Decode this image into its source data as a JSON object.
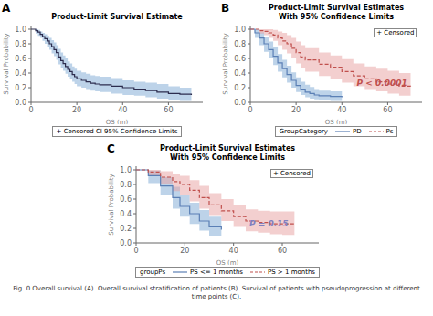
{
  "chart_data": [
    {
      "type": "step",
      "panel_label": "A",
      "title": "Product-Limit Survival Estimate",
      "xlabel": "OS (m)",
      "ylabel": "Survival Probability",
      "xlim": [
        0,
        75
      ],
      "ylim": [
        0.0,
        1.05
      ],
      "xticks": [
        0,
        20,
        40,
        60
      ],
      "yticks": [
        {
          "value": 0.0,
          "label": "0.0"
        },
        0.2,
        0.4,
        0.6,
        0.8,
        {
          "value": 1.0,
          "label": "1.0"
        }
      ],
      "legend_text": "+ Censored  CI 95% Confidence Limits",
      "series": [
        {
          "color": "#2c2c4e",
          "ci_color": "#7ba7d4",
          "line_style": "solid",
          "x": [
            0,
            2,
            3,
            4,
            5,
            6,
            7,
            8,
            9,
            10,
            11,
            12,
            13,
            14,
            15,
            16,
            17,
            18,
            19,
            20,
            22,
            24,
            26,
            28,
            30,
            35,
            40,
            45,
            50,
            55,
            60,
            65,
            70
          ],
          "values": [
            1.0,
            0.98,
            0.96,
            0.93,
            0.9,
            0.87,
            0.84,
            0.8,
            0.76,
            0.72,
            0.68,
            0.62,
            0.57,
            0.53,
            0.49,
            0.45,
            0.42,
            0.38,
            0.35,
            0.32,
            0.3,
            0.28,
            0.26,
            0.25,
            0.24,
            0.22,
            0.2,
            0.18,
            0.16,
            0.14,
            0.12,
            0.11,
            0.1
          ],
          "ci_upper": [
            1.0,
            1.0,
            0.99,
            0.97,
            0.95,
            0.93,
            0.91,
            0.88,
            0.85,
            0.82,
            0.78,
            0.73,
            0.68,
            0.64,
            0.6,
            0.56,
            0.53,
            0.49,
            0.46,
            0.43,
            0.41,
            0.39,
            0.37,
            0.36,
            0.35,
            0.33,
            0.3,
            0.28,
            0.27,
            0.25,
            0.22,
            0.2,
            0.19
          ],
          "ci_lower": [
            1.0,
            0.94,
            0.91,
            0.88,
            0.84,
            0.8,
            0.76,
            0.72,
            0.67,
            0.63,
            0.58,
            0.52,
            0.47,
            0.43,
            0.39,
            0.35,
            0.32,
            0.28,
            0.25,
            0.22,
            0.2,
            0.18,
            0.16,
            0.15,
            0.14,
            0.12,
            0.1,
            0.09,
            0.07,
            0.05,
            0.03,
            0.02,
            0.01
          ]
        }
      ]
    },
    {
      "type": "step",
      "panel_label": "B",
      "title": "Product-Limit Survival Estimates",
      "subtitle": "With 95% Confidence Limits",
      "xlabel": "OS (m)",
      "ylabel": "Survival Probability",
      "xlim": [
        0,
        75
      ],
      "ylim": [
        0.0,
        1.05
      ],
      "xticks": [
        0,
        20,
        40,
        60
      ],
      "yticks": [
        {
          "value": 0.0,
          "label": "0.0"
        },
        0.2,
        0.4,
        0.6,
        0.8,
        {
          "value": 1.0,
          "label": "1.0"
        }
      ],
      "pvalue": "P < 0.0001",
      "pvalue_color": "#c0504d",
      "censored_label": "+ Censored",
      "legend_title": "GroupCategory",
      "series": [
        {
          "name": "PD",
          "color": "#5a7fb5",
          "ci_color": "#7ba7d4",
          "line_style": "solid",
          "x": [
            0,
            2,
            4,
            6,
            8,
            10,
            12,
            14,
            16,
            18,
            20,
            22,
            24,
            26,
            28,
            30,
            35,
            40
          ],
          "values": [
            1.0,
            0.95,
            0.88,
            0.8,
            0.72,
            0.63,
            0.54,
            0.46,
            0.38,
            0.3,
            0.23,
            0.18,
            0.14,
            0.12,
            0.1,
            0.09,
            0.08,
            0.07
          ],
          "ci_upper": [
            1.0,
            1.0,
            0.96,
            0.9,
            0.83,
            0.75,
            0.66,
            0.58,
            0.5,
            0.41,
            0.34,
            0.28,
            0.24,
            0.21,
            0.18,
            0.16,
            0.15,
            0.14
          ],
          "ci_lower": [
            1.0,
            0.88,
            0.78,
            0.69,
            0.6,
            0.51,
            0.42,
            0.34,
            0.27,
            0.2,
            0.14,
            0.1,
            0.07,
            0.05,
            0.04,
            0.03,
            0.02,
            0.01
          ]
        },
        {
          "name": "Ps",
          "color": "#c0504d",
          "ci_color": "#e8a09f",
          "line_style": "dashed",
          "x": [
            0,
            2,
            4,
            6,
            8,
            10,
            12,
            14,
            16,
            18,
            20,
            22,
            24,
            30,
            35,
            40,
            45,
            50,
            55,
            60,
            65,
            70
          ],
          "values": [
            1.0,
            1.0,
            0.98,
            0.97,
            0.95,
            0.92,
            0.88,
            0.84,
            0.8,
            0.74,
            0.68,
            0.62,
            0.58,
            0.52,
            0.48,
            0.42,
            0.36,
            0.32,
            0.28,
            0.25,
            0.22,
            0.2
          ],
          "ci_upper": [
            1.0,
            1.0,
            1.0,
            1.0,
            1.0,
            0.99,
            0.97,
            0.95,
            0.92,
            0.88,
            0.83,
            0.78,
            0.74,
            0.68,
            0.64,
            0.59,
            0.53,
            0.49,
            0.46,
            0.43,
            0.4,
            0.38
          ],
          "ci_lower": [
            1.0,
            1.0,
            0.94,
            0.92,
            0.88,
            0.84,
            0.78,
            0.72,
            0.67,
            0.6,
            0.53,
            0.47,
            0.42,
            0.36,
            0.32,
            0.27,
            0.22,
            0.18,
            0.15,
            0.12,
            0.09,
            0.07
          ]
        }
      ]
    },
    {
      "type": "step",
      "panel_label": "C",
      "title": "Product-Limit Survival Estimates",
      "subtitle": "With 95% Confidence Limits",
      "xlabel": "OS (m)",
      "ylabel": "Survival Probability",
      "xlim": [
        0,
        75
      ],
      "ylim": [
        0.0,
        1.05
      ],
      "xticks": [
        0,
        20,
        40,
        60
      ],
      "yticks": [
        {
          "value": 0.0,
          "label": "0.0"
        },
        0.2,
        0.4,
        0.6,
        0.8,
        {
          "value": 1.0,
          "label": "1.0"
        }
      ],
      "pvalue": "P = 0.15",
      "pvalue_color": "#8080c0",
      "censored_label": "+ Censored",
      "legend_title": "groupPs",
      "series": [
        {
          "name": "PS <= 1 months",
          "color": "#5a7fb5",
          "ci_color": "#7ba7d4",
          "line_style": "solid",
          "x": [
            0,
            5,
            10,
            15,
            18,
            22,
            26,
            30,
            35
          ],
          "values": [
            1.0,
            0.92,
            0.78,
            0.62,
            0.5,
            0.4,
            0.3,
            0.22,
            0.18
          ],
          "ci_upper": [
            1.0,
            0.99,
            0.9,
            0.77,
            0.65,
            0.55,
            0.45,
            0.36,
            0.31
          ],
          "ci_lower": [
            1.0,
            0.82,
            0.65,
            0.47,
            0.36,
            0.26,
            0.17,
            0.1,
            0.07
          ]
        },
        {
          "name": "PS > 1 months",
          "color": "#c0504d",
          "ci_color": "#e8a09f",
          "line_style": "dashed",
          "x": [
            0,
            5,
            10,
            15,
            18,
            22,
            26,
            30,
            35,
            40,
            45,
            50,
            55,
            60,
            65
          ],
          "values": [
            1.0,
            0.97,
            0.9,
            0.84,
            0.8,
            0.72,
            0.62,
            0.52,
            0.44,
            0.36,
            0.3,
            0.28,
            0.26,
            0.26,
            0.26
          ],
          "ci_upper": [
            1.0,
            1.0,
            0.98,
            0.95,
            0.92,
            0.86,
            0.78,
            0.68,
            0.6,
            0.52,
            0.46,
            0.44,
            0.43,
            0.43,
            0.43
          ],
          "ci_lower": [
            1.0,
            0.92,
            0.8,
            0.71,
            0.66,
            0.57,
            0.47,
            0.38,
            0.3,
            0.22,
            0.16,
            0.14,
            0.12,
            0.11,
            0.11
          ]
        }
      ]
    }
  ],
  "caption": "Fig. 0 Overall survival (A). Overall survival stratification of patients (B). Survival of patients with pseudoprogression at different time points (C)."
}
